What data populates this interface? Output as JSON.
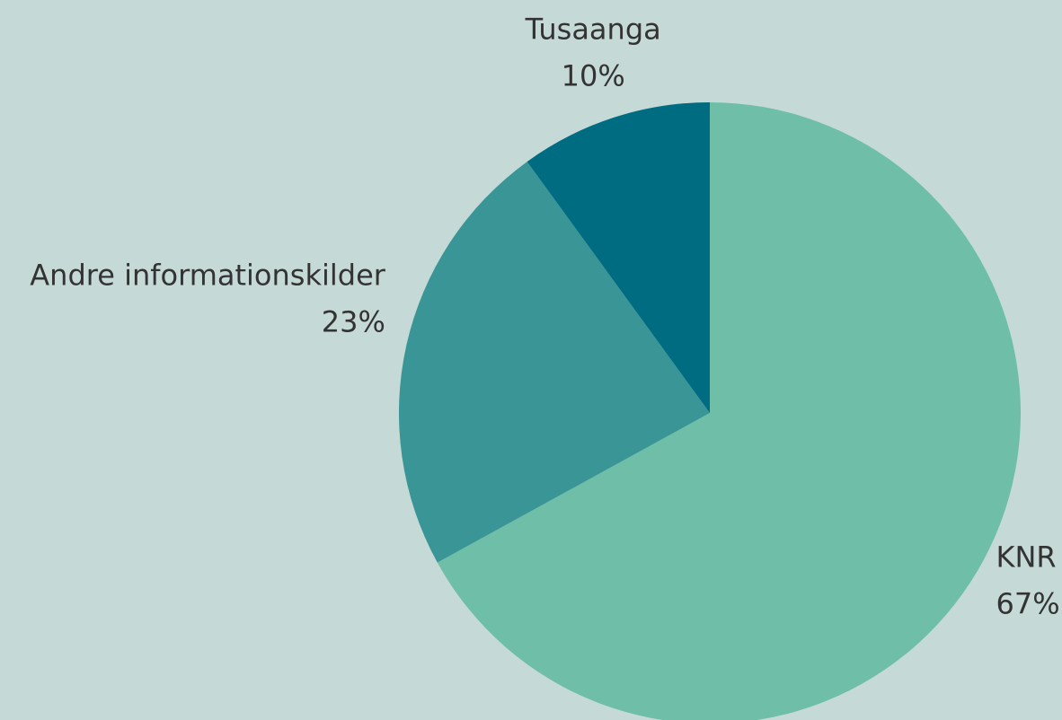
{
  "chart_data": {
    "type": "pie",
    "categories": [
      "KNR",
      "Andre informationskilder",
      "Tusaanga"
    ],
    "values": [
      67,
      23,
      10
    ],
    "value_labels": [
      "67%",
      "23%",
      "10%"
    ],
    "colors": [
      "#6fbea8",
      "#3a9696",
      "#006c82"
    ]
  }
}
